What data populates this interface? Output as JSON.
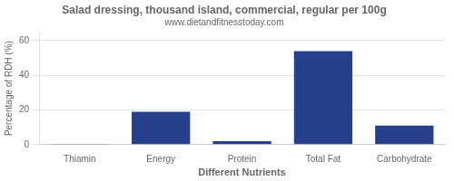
{
  "chart_data": {
    "type": "bar",
    "title": "Salad dressing, thousand island, commercial, regular per 100g",
    "subtitle": "www.dietandfitnesstoday.com",
    "xlabel": "Different Nutrients",
    "ylabel": "Percentage of RDH (%)",
    "categories": [
      "Thiamin",
      "Energy",
      "Protein",
      "Total Fat",
      "Carbohydrate"
    ],
    "values": [
      0.4,
      19.0,
      2.0,
      54.0,
      11.0
    ],
    "color": "#27408B",
    "ylim": [
      0,
      65
    ],
    "yticks": [
      0,
      20,
      40,
      60
    ],
    "grid": true
  }
}
